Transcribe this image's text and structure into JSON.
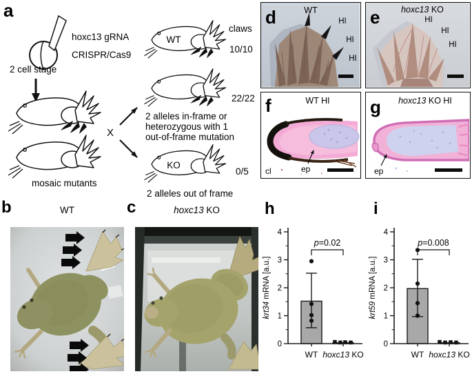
{
  "figure": {
    "background": "#ffffff"
  },
  "panels": {
    "a": {
      "label": "a",
      "grna_line": "hoxc13 gRNA",
      "cas9_line": "CRISPR/Cas9",
      "stage_label": "2 cell stage",
      "mosaic_label": "mosaic mutants",
      "cross_symbol": "X",
      "claws_header": "claws",
      "wt_frog_label": "WT",
      "ko_frog_label": "KO",
      "wt_claw_count": "10/10",
      "het_claw_count": "22/22",
      "ko_claw_count": "0/5",
      "het_desc": [
        "2 alleles in-frame or",
        "heterozygous with 1",
        "out-of-frame mutation"
      ],
      "ko_desc": "2 alleles out of frame"
    },
    "b": {
      "label": "b",
      "title": "WT"
    },
    "c": {
      "label": "c",
      "title_gene": "hoxc13",
      "title_rest": " KO"
    },
    "d": {
      "label": "d",
      "title": "WT",
      "hi_labels": [
        "HI",
        "HI",
        "HI"
      ]
    },
    "e": {
      "label": "e",
      "title_gene": "hoxc13",
      "title_rest": " KO",
      "hi_labels": [
        "HI",
        "HI",
        "HI"
      ]
    },
    "f": {
      "label": "f",
      "title": "WT HI",
      "claw_label": "cl",
      "epidermis_label": "ep"
    },
    "g": {
      "label": "g",
      "title_gene": "hoxc13",
      "title_rest": " KO HI",
      "epidermis_label": "ep"
    },
    "h": {
      "label": "h"
    },
    "i": {
      "label": "i"
    }
  },
  "chart_data": [
    {
      "id": "h",
      "type": "bar",
      "ylabel_gene": "krt34",
      "ylabel_rest": " mRNA [a.u.]",
      "ylim": [
        0,
        4
      ],
      "yticks": [
        0,
        1,
        2,
        3,
        4
      ],
      "minor_tick_step": 0.5,
      "categories": [
        [
          {
            "t": "WT"
          }
        ],
        [
          {
            "t": "hoxc13",
            "i": true
          },
          {
            "t": " KO"
          }
        ]
      ],
      "bar_means": [
        1.52,
        0.03
      ],
      "errors": [
        [
          0.57,
          2.52
        ],
        null
      ],
      "points": [
        [
          2.95,
          1.42,
          1.02,
          0.82
        ],
        [
          0.06,
          0.04,
          0.05,
          0.04
        ]
      ],
      "point_dx": [
        [
          0,
          0,
          0,
          0
        ],
        [
          -12,
          -4,
          3,
          11
        ]
      ],
      "point_shapes": [
        "circle",
        "square"
      ],
      "p_label": "p=0.02",
      "bar_color": "#a8a8a8",
      "axis_color": "#1a1a1a",
      "grid": false,
      "legend": false
    },
    {
      "id": "i",
      "type": "bar",
      "ylabel_gene": "krt59",
      "ylabel_rest": " mRNA [a.u.]",
      "ylim": [
        0,
        4
      ],
      "yticks": [
        0,
        1,
        2,
        3,
        4
      ],
      "minor_tick_step": 0.5,
      "categories": [
        [
          {
            "t": "WT"
          }
        ],
        [
          {
            "t": "hoxc13",
            "i": true
          },
          {
            "t": " KO"
          }
        ]
      ],
      "bar_means": [
        1.97,
        0.03
      ],
      "errors": [
        [
          0.97,
          3.02
        ],
        null
      ],
      "points": [
        [
          3.35,
          2.15,
          1.45,
          1.0
        ],
        [
          0.06,
          0.04,
          0.05,
          0.04
        ]
      ],
      "point_dx": [
        [
          0,
          0,
          0,
          0
        ],
        [
          -14,
          -6,
          2,
          10
        ]
      ],
      "point_shapes": [
        "circle",
        "square"
      ],
      "p_label": "p=0.008",
      "bar_color": "#a8a8a8",
      "axis_color": "#1a1a1a",
      "grid": false,
      "legend": false
    }
  ]
}
